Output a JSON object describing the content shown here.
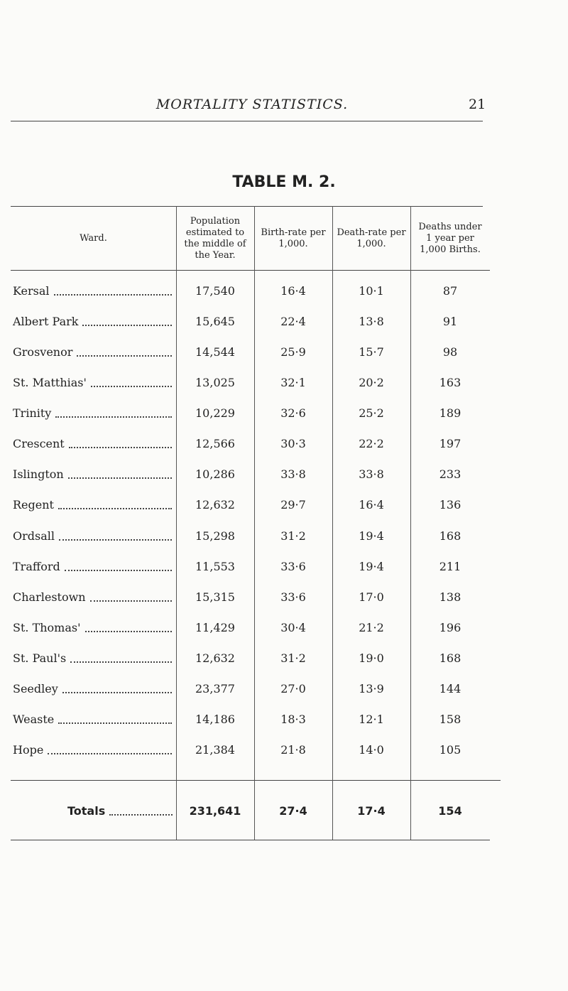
{
  "header": {
    "title": "MORTALITY STATISTICS.",
    "page_number": "21"
  },
  "table_title": "TABLE M. 2.",
  "table": {
    "columns": [
      "Ward.",
      "Population estimated to the middle of the Year.",
      "Birth-rate per 1,000.",
      "Death-rate per 1,000.",
      "Deaths under 1 year per 1,000 Births."
    ],
    "rows": [
      [
        "Kersal",
        "17,540",
        "16·4",
        "10·1",
        "87"
      ],
      [
        "Albert Park",
        "15,645",
        "22·4",
        "13·8",
        "91"
      ],
      [
        "Grosvenor",
        "14,544",
        "25·9",
        "15·7",
        "98"
      ],
      [
        "St. Matthias'",
        "13,025",
        "32·1",
        "20·2",
        "163"
      ],
      [
        "Trinity",
        "10,229",
        "32·6",
        "25·2",
        "189"
      ],
      [
        "Crescent",
        "12,566",
        "30·3",
        "22·2",
        "197"
      ],
      [
        "Islington",
        "10,286",
        "33·8",
        "33·8",
        "233"
      ],
      [
        "Regent",
        "12,632",
        "29·7",
        "16·4",
        "136"
      ],
      [
        "Ordsall",
        "15,298",
        "31·2",
        "19·4",
        "168"
      ],
      [
        "Trafford",
        "11,553",
        "33·6",
        "19·4",
        "211"
      ],
      [
        "Charlestown",
        "15,315",
        "33·6",
        "17·0",
        "138"
      ],
      [
        "St. Thomas'",
        "11,429",
        "30·4",
        "21·2",
        "196"
      ],
      [
        "St. Paul's",
        "12,632",
        "31·2",
        "19·0",
        "168"
      ],
      [
        "Seedley",
        "23,377",
        "27·0",
        "13·9",
        "144"
      ],
      [
        "Weaste",
        "14,186",
        "18·3",
        "12·1",
        "158"
      ],
      [
        "Hope",
        "21,384",
        "21·8",
        "14·0",
        "105"
      ]
    ],
    "totals": [
      "Totals",
      "231,641",
      "27·4",
      "17·4",
      "154"
    ]
  }
}
